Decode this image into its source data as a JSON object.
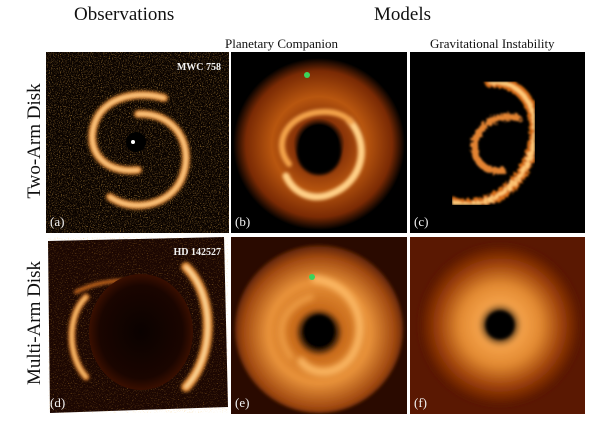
{
  "headers": {
    "observations": "Observations",
    "models": "Models",
    "planetary_companion": "Planetary Companion",
    "gravitational_instability": "Gravitational Instability"
  },
  "rows": {
    "two_arm": "Two-Arm Disk",
    "multi_arm": "Multi-Arm Disk"
  },
  "panels": {
    "a": {
      "label": "(a)",
      "target": "MWC 758"
    },
    "b": {
      "label": "(b)"
    },
    "c": {
      "label": "(c)"
    },
    "d": {
      "label": "(d)",
      "target": "HD 142527"
    },
    "e": {
      "label": "(e)"
    },
    "f": {
      "label": "(f)"
    }
  },
  "colors": {
    "planet_marker": "#3bd45a",
    "emission_bright": "#ffe2a6",
    "emission_mid": "#e07a1e",
    "emission_dark": "#5a1a02"
  }
}
